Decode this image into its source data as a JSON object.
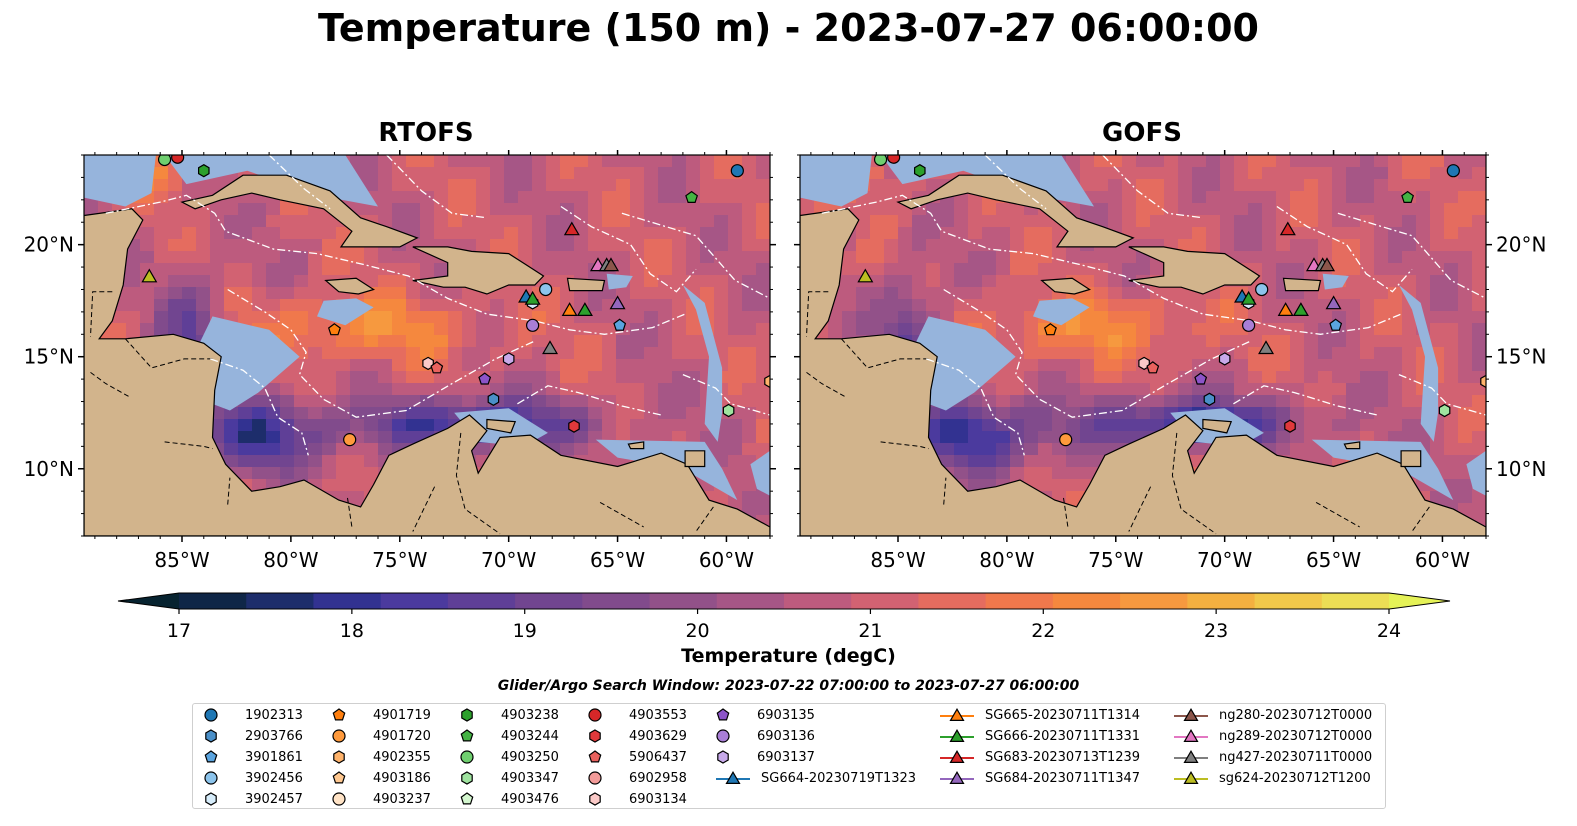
{
  "title": "Temperature (150 m) - 2023-07-27 06:00:00",
  "panels": [
    {
      "title": "RTOFS",
      "seed": 1
    },
    {
      "title": "GOFS",
      "seed": 2
    }
  ],
  "map": {
    "lon_range": [
      -89.5,
      -58.0
    ],
    "lat_range": [
      7.0,
      24.0
    ],
    "lon_ticks": [
      {
        "value": -85,
        "label": "85°W"
      },
      {
        "value": -80,
        "label": "80°W"
      },
      {
        "value": -75,
        "label": "75°W"
      },
      {
        "value": -70,
        "label": "70°W"
      },
      {
        "value": -65,
        "label": "65°W"
      },
      {
        "value": -60,
        "label": "60°W"
      }
    ],
    "lat_ticks": [
      {
        "value": 20,
        "label": "20°N"
      },
      {
        "value": 15,
        "label": "15°N"
      },
      {
        "value": 10,
        "label": "10°N"
      }
    ],
    "colors": {
      "land": "#d2b48c",
      "shelf": "#96b4dc",
      "eez": "#ffffff",
      "border": "#000000"
    }
  },
  "colorbar": {
    "label": "Temperature (degC)",
    "min": 16.75,
    "max": 24.5,
    "step": 0.5,
    "ticks": [
      17,
      18,
      19,
      20,
      21,
      22,
      23,
      24
    ],
    "palette": [
      "#072330",
      "#0f2647",
      "#1d2d6b",
      "#323291",
      "#4b3a9e",
      "#5f3f97",
      "#714590",
      "#814b8c",
      "#925189",
      "#a65686",
      "#bd5b7e",
      "#d26272",
      "#e56c5f",
      "#f0784c",
      "#f5883e",
      "#f6993f",
      "#f4b040",
      "#f1c84a",
      "#ecde55",
      "#e5f257"
    ]
  },
  "legend": {
    "title": "Glider/Argo Search Window: 2023-07-22 07:00:00 to 2023-07-27 06:00:00",
    "argo": [
      {
        "id": "1902313",
        "marker": "circle",
        "color": "#1f77b4"
      },
      {
        "id": "2903766",
        "marker": "hexagon",
        "color": "#4a8fc8"
      },
      {
        "id": "3901861",
        "marker": "pentagon",
        "color": "#5aa4df"
      },
      {
        "id": "3902456",
        "marker": "circle",
        "color": "#8cc4ec"
      },
      {
        "id": "3902457",
        "marker": "hexagon",
        "color": "#d6ecfa"
      },
      {
        "id": "4901719",
        "marker": "pentagon",
        "color": "#ff7f0e"
      },
      {
        "id": "4901720",
        "marker": "circle",
        "color": "#ff9a3c"
      },
      {
        "id": "4902355",
        "marker": "hexagon",
        "color": "#ffb36b"
      },
      {
        "id": "4903186",
        "marker": "pentagon",
        "color": "#ffc890"
      },
      {
        "id": "4903237",
        "marker": "circle",
        "color": "#ffe3c6"
      },
      {
        "id": "4903238",
        "marker": "hexagon",
        "color": "#2ca02c"
      },
      {
        "id": "4903244",
        "marker": "pentagon",
        "color": "#44b344"
      },
      {
        "id": "4903250",
        "marker": "circle",
        "color": "#6fcf6f"
      },
      {
        "id": "4903347",
        "marker": "hexagon",
        "color": "#9fe39f"
      },
      {
        "id": "4903476",
        "marker": "pentagon",
        "color": "#d4f7cf"
      },
      {
        "id": "4903553",
        "marker": "circle",
        "color": "#d62728"
      },
      {
        "id": "4903629",
        "marker": "hexagon",
        "color": "#e0393b"
      },
      {
        "id": "5906437",
        "marker": "pentagon",
        "color": "#e9625e"
      },
      {
        "id": "6902958",
        "marker": "circle",
        "color": "#f39b99"
      },
      {
        "id": "6903134",
        "marker": "hexagon",
        "color": "#fbcac8"
      },
      {
        "id": "6903135",
        "marker": "pentagon",
        "color": "#8c54c8"
      },
      {
        "id": "6903136",
        "marker": "circle",
        "color": "#a97ed6"
      },
      {
        "id": "6903137",
        "marker": "hexagon",
        "color": "#c8aaea"
      }
    ],
    "gliders": [
      {
        "id": "SG664-20230719T1323",
        "color": "#1f77b4"
      },
      {
        "id": "SG665-20230711T1314",
        "color": "#ff7f0e"
      },
      {
        "id": "SG666-20230711T1331",
        "color": "#2ca02c"
      },
      {
        "id": "SG683-20230713T1239",
        "color": "#d62728"
      },
      {
        "id": "SG684-20230711T1347",
        "color": "#9467bd"
      },
      {
        "id": "ng280-20230712T0000",
        "color": "#8c564b"
      },
      {
        "id": "ng289-20230712T0000",
        "color": "#e377c2"
      },
      {
        "id": "ng427-20230711T0000",
        "color": "#7f7f7f"
      },
      {
        "id": "sg624-20230712T1200",
        "color": "#bcbd22"
      }
    ]
  },
  "argo_positions": [
    {
      "id": "1902313",
      "lon": -59.5,
      "lat": 23.3
    },
    {
      "id": "4903244",
      "lon": -61.6,
      "lat": 22.1
    },
    {
      "id": "4903238",
      "lon": -84.0,
      "lat": 23.3
    },
    {
      "id": "4903250",
      "lon": -85.8,
      "lat": 23.8
    },
    {
      "id": "4903553",
      "lon": -85.2,
      "lat": 23.9
    },
    {
      "id": "3902456",
      "lon": -68.3,
      "lat": 18.0
    },
    {
      "id": "3902457",
      "lon": -68.9,
      "lat": 17.4
    },
    {
      "id": "6903136",
      "lon": -68.9,
      "lat": 16.4
    },
    {
      "id": "3901861",
      "lon": -64.9,
      "lat": 16.4
    },
    {
      "id": "4901719",
      "lon": -78.0,
      "lat": 16.2
    },
    {
      "id": "6903137",
      "lon": -70.0,
      "lat": 14.9
    },
    {
      "id": "6903134",
      "lon": -73.7,
      "lat": 14.7
    },
    {
      "id": "5906437",
      "lon": -73.3,
      "lat": 14.5
    },
    {
      "id": "6903135",
      "lon": -71.1,
      "lat": 14.0
    },
    {
      "id": "2903766",
      "lon": -70.7,
      "lat": 13.1
    },
    {
      "id": "4903629",
      "lon": -67.0,
      "lat": 11.9
    },
    {
      "id": "4901720",
      "lon": -77.3,
      "lat": 11.3
    },
    {
      "id": "4903347",
      "lon": -59.9,
      "lat": 12.6
    },
    {
      "id": "4902355",
      "lon": -58.0,
      "lat": 13.9
    }
  ],
  "glider_positions": [
    {
      "id": "SG683-20230713T1239",
      "lon": -67.1,
      "lat": 20.7
    },
    {
      "id": "ng289-20230712T0000",
      "lon": -65.9,
      "lat": 19.1
    },
    {
      "id": "ng427-20230711T0000",
      "lon": -65.5,
      "lat": 19.1
    },
    {
      "id": "ng280-20230712T0000",
      "lon": -65.3,
      "lat": 19.1
    },
    {
      "id": "sg624-20230712T1200",
      "lon": -86.5,
      "lat": 18.6
    },
    {
      "id": "SG664-20230719T1323",
      "lon": -69.2,
      "lat": 17.7
    },
    {
      "id": "SG666-20230711T1331",
      "lon": -68.9,
      "lat": 17.6
    },
    {
      "id": "SG665-20230711T1314",
      "lon": -67.2,
      "lat": 17.1
    },
    {
      "id": "SG666-20230711T1331",
      "lon": -66.5,
      "lat": 17.1
    },
    {
      "id": "SG684-20230711T1347",
      "lon": -65.0,
      "lat": 17.4
    },
    {
      "id": "ng427-20230711T0000",
      "lon": -68.1,
      "lat": 15.4
    }
  ]
}
